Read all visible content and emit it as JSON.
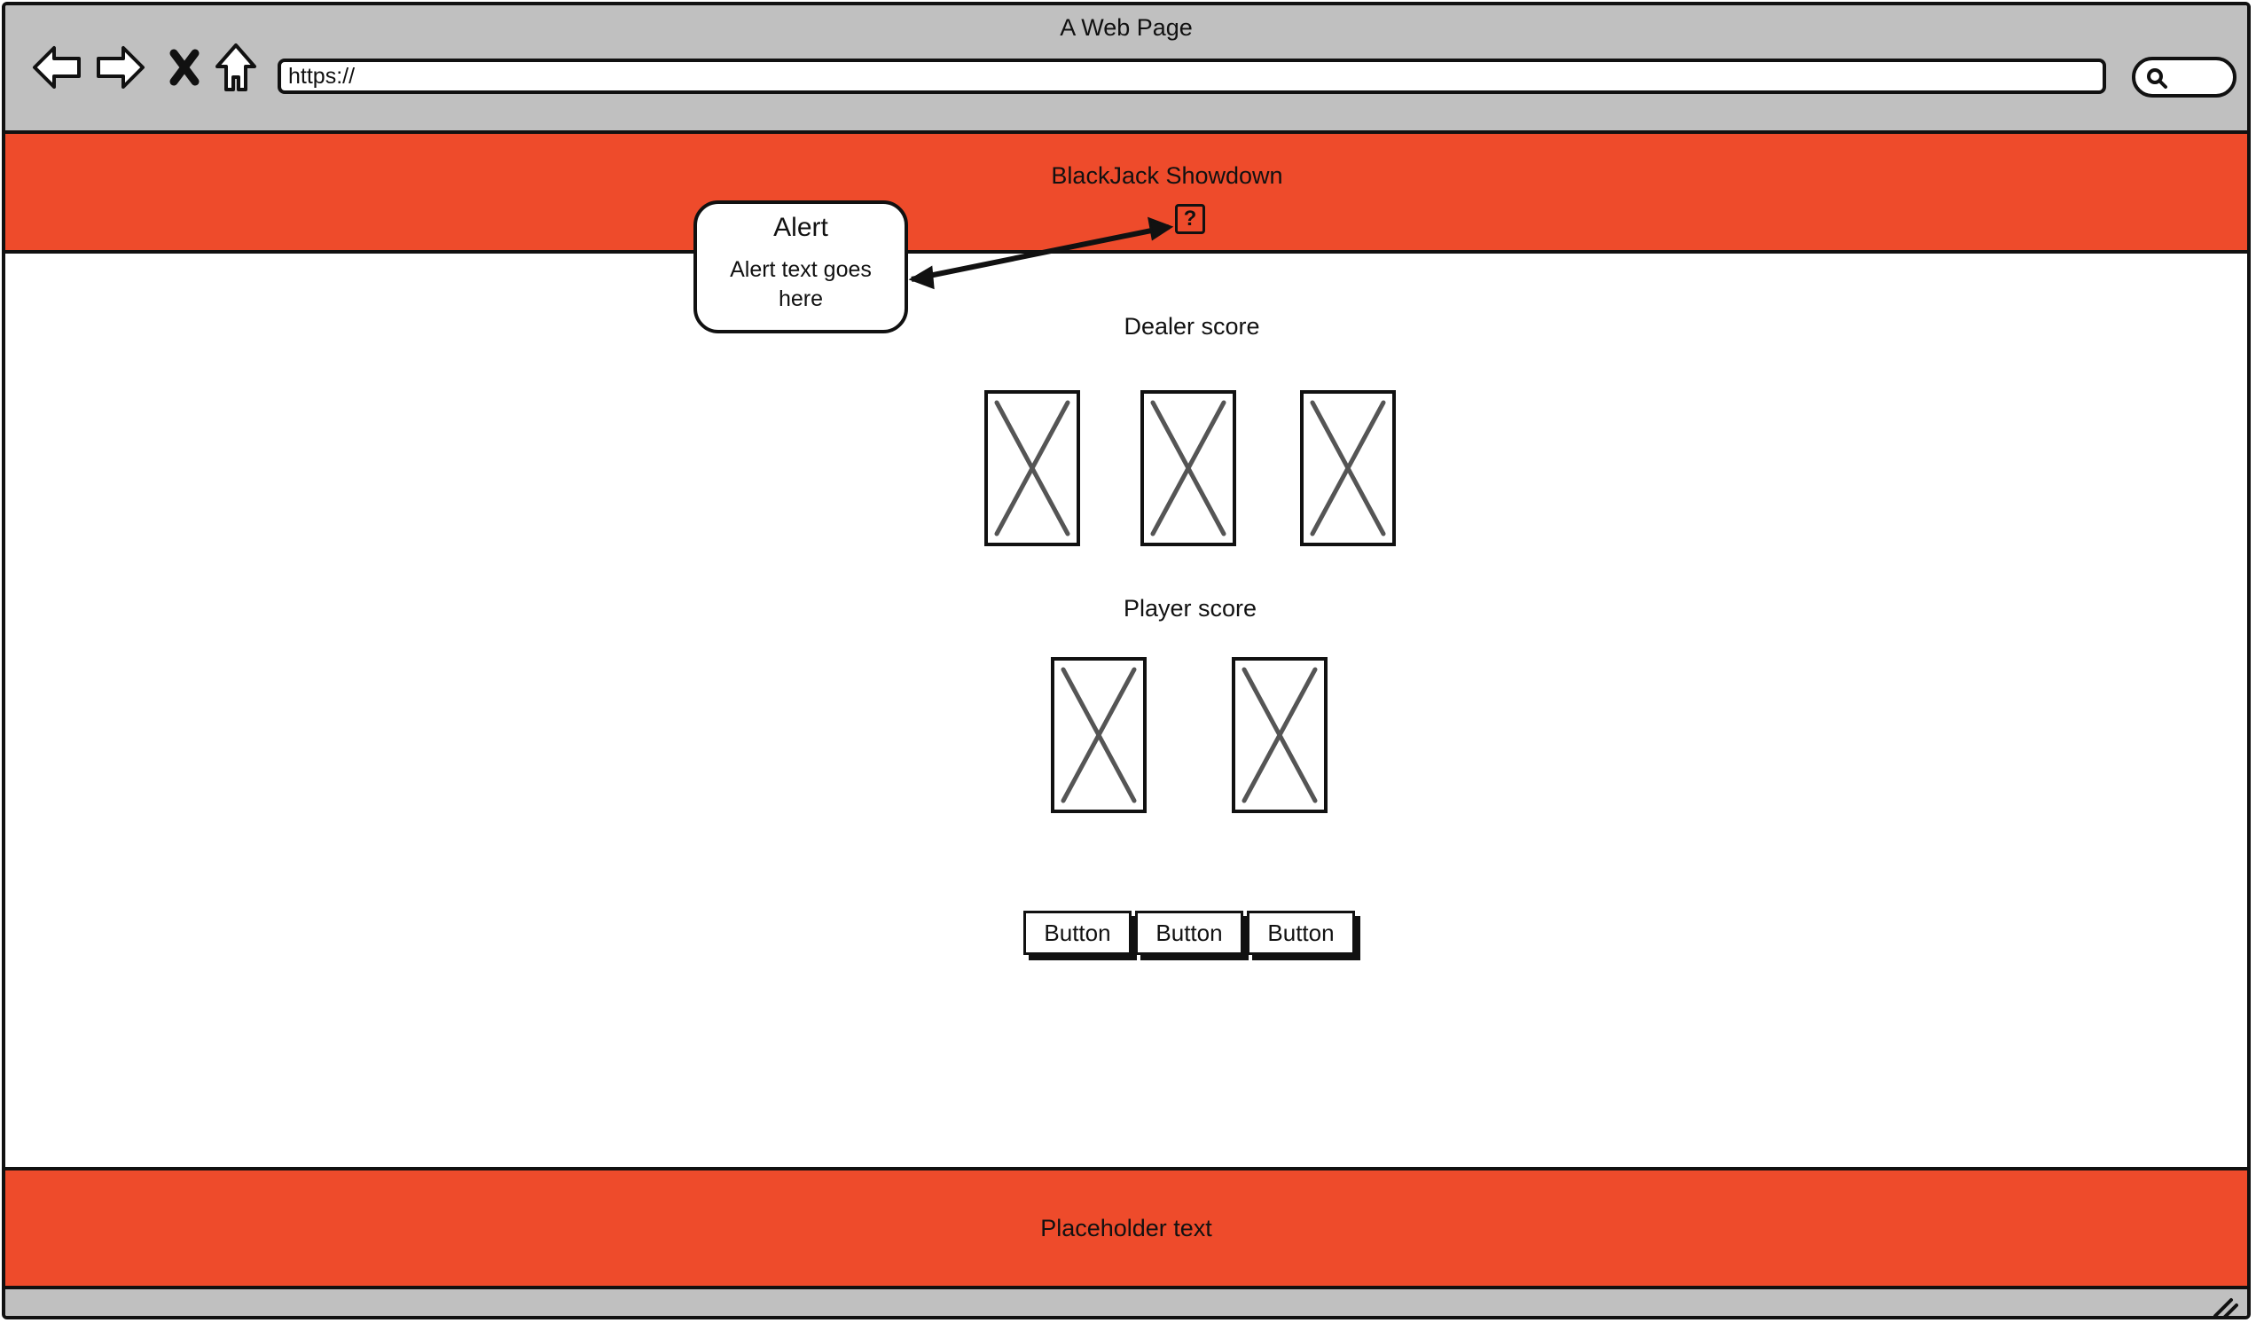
{
  "browser": {
    "window_title": "A Web Page",
    "url": "https://",
    "icons": [
      "back-arrow-icon",
      "forward-arrow-icon",
      "close-x-icon",
      "home-icon",
      "search-icon"
    ]
  },
  "header": {
    "title": "BlackJack Showdown",
    "help_icon_label": "?"
  },
  "alert": {
    "title": "Alert",
    "text": "Alert text goes here"
  },
  "dealer": {
    "score_label": "Dealer score",
    "card_count": 3
  },
  "player": {
    "score_label": "Player score",
    "card_count": 2
  },
  "buttons": [
    "Button",
    "Button",
    "Button"
  ],
  "footer": {
    "text": "Placeholder text"
  },
  "colors": {
    "accent": "#ee4b2b",
    "chrome": "#c0c0c0",
    "stroke": "#111111"
  }
}
